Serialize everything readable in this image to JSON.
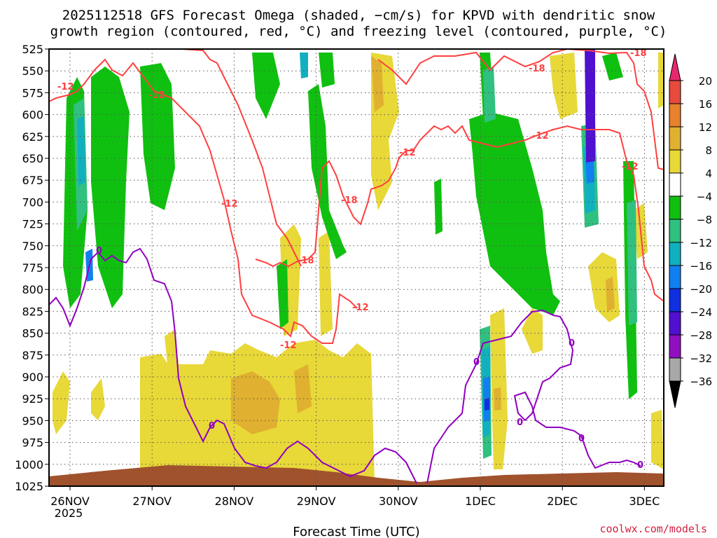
{
  "chart_data": {
    "type": "heatmap",
    "title_line1": "2025112518 GFS Forecast Omega (shaded, −cm/s) for KPVD with dendritic snow",
    "title_line2": "growth region (contoured, red, °C) and freezing level (contoured, purple, °C)",
    "xlabel": "Forecast Time (UTC)",
    "ylabel": "",
    "credit": "coolwx.com/models",
    "y_ticks": [
      "525",
      "550",
      "575",
      "600",
      "625",
      "650",
      "675",
      "700",
      "725",
      "750",
      "775",
      "800",
      "825",
      "850",
      "875",
      "900",
      "925",
      "950",
      "975",
      "1000",
      "1025"
    ],
    "ylim": [
      525,
      1025
    ],
    "x_ticks": [
      {
        "label": "26NOV",
        "sub": "2025",
        "time": "2025-11-26 00Z"
      },
      {
        "label": "27NOV",
        "sub": "",
        "time": "2025-11-27 00Z"
      },
      {
        "label": "28NOV",
        "sub": "",
        "time": "2025-11-28 00Z"
      },
      {
        "label": "29NOV",
        "sub": "",
        "time": "2025-11-29 00Z"
      },
      {
        "label": "30NOV",
        "sub": "",
        "time": "2025-11-30 00Z"
      },
      {
        "label": "1DEC",
        "sub": "",
        "time": "2025-12-01 00Z"
      },
      {
        "label": "2DEC",
        "sub": "",
        "time": "2025-12-02 00Z"
      },
      {
        "label": "3DEC",
        "sub": "",
        "time": "2025-12-03 00Z"
      }
    ],
    "xlim": [
      "2025-11-25 18Z",
      "2025-12-03 06Z"
    ],
    "grid": true,
    "colorbar": {
      "levels": [
        "20",
        "16",
        "12",
        "8",
        "4",
        "−4",
        "−8",
        "−12",
        "−16",
        "−20",
        "−24",
        "−28",
        "−32",
        "−36"
      ],
      "colors": [
        "#e8286e",
        "#e84a3c",
        "#e8822e",
        "#e0b030",
        "#e8d838",
        "#ffffff",
        "#10c010",
        "#30c080",
        "#10b0c0",
        "#1080f0",
        "#1030e0",
        "#5010d0",
        "#9010c0",
        "#a8a8a8",
        "#000000"
      ]
    },
    "contours": {
      "dgz_labels": [
        "-12",
        "-12",
        "-12",
        "-18",
        "-18",
        "-12",
        "-12",
        "-12",
        "-18",
        "-12",
        "-18",
        "-12"
      ],
      "freezing_labels": [
        "0",
        "0",
        "0",
        "0",
        "0",
        "0",
        "0"
      ]
    }
  }
}
